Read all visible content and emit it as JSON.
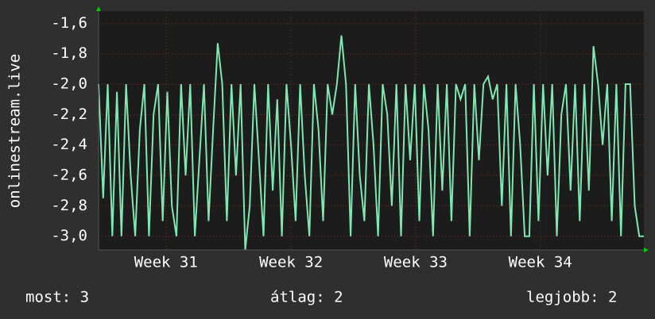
{
  "chart_data": {
    "type": "line",
    "y_label": "onlinestream.live",
    "series": [
      {
        "name": "onlinestream.live",
        "color": "#7ee8b0",
        "values": [
          -2.0,
          -2.75,
          -2.0,
          -3.0,
          -2.05,
          -3.0,
          -2.0,
          -2.6,
          -3.0,
          -2.3,
          -2.0,
          -3.0,
          -2.2,
          -2.0,
          -2.9,
          -2.05,
          -2.8,
          -3.0,
          -2.0,
          -2.6,
          -2.0,
          -3.0,
          -2.5,
          -2.0,
          -2.9,
          -2.3,
          -1.73,
          -2.0,
          -2.9,
          -2.0,
          -2.6,
          -2.0,
          -3.09,
          -2.8,
          -2.0,
          -2.5,
          -3.0,
          -2.0,
          -2.7,
          -2.1,
          -3.0,
          -2.0,
          -2.4,
          -2.9,
          -2.0,
          -2.6,
          -3.0,
          -2.0,
          -2.3,
          -2.9,
          -2.0,
          -2.2,
          -2.0,
          -1.68,
          -2.0,
          -3.0,
          -2.0,
          -2.6,
          -2.9,
          -2.0,
          -2.4,
          -3.0,
          -2.0,
          -2.2,
          -2.8,
          -2.0,
          -3.0,
          -2.0,
          -2.5,
          -2.0,
          -2.9,
          -2.0,
          -2.3,
          -3.0,
          -2.0,
          -2.7,
          -2.0,
          -2.9,
          -2.0,
          -2.1,
          -2.0,
          -3.0,
          -2.0,
          -2.5,
          -2.0,
          -1.95,
          -2.1,
          -2.0,
          -2.8,
          -2.0,
          -3.0,
          -2.0,
          -2.4,
          -3.0,
          -3.0,
          -2.0,
          -2.9,
          -2.0,
          -2.6,
          -2.0,
          -3.0,
          -2.2,
          -2.0,
          -2.7,
          -2.0,
          -2.9,
          -2.0,
          -2.7,
          -1.75,
          -2.0,
          -2.4,
          -2.0,
          -2.9,
          -2.0,
          -3.0,
          -2.0,
          -2.0,
          -2.8,
          -3.0,
          -3.0
        ]
      }
    ],
    "xlim": [
      0,
      119
    ],
    "xticks": [
      {
        "value": 14.7,
        "label": "Week 31"
      },
      {
        "value": 42,
        "label": "Week 32"
      },
      {
        "value": 69.2,
        "label": "Week 33"
      },
      {
        "value": 96.4,
        "label": "Week 34"
      }
    ],
    "ylim": [
      -3.09,
      -1.52
    ],
    "yticks": [
      {
        "value": -3.0,
        "label": "-3,0"
      },
      {
        "value": -2.8,
        "label": "-2,8"
      },
      {
        "value": -2.6,
        "label": "-2,6"
      },
      {
        "value": -2.4,
        "label": "-2,4"
      },
      {
        "value": -2.2,
        "label": "-2,2"
      },
      {
        "value": -2.0,
        "label": "-2,0"
      },
      {
        "value": -1.8,
        "label": "-1,8"
      },
      {
        "value": -1.6,
        "label": "-1,6"
      }
    ],
    "grid": true,
    "legend": [
      "most: 3",
      "átlag: 2",
      "legjobb: 2"
    ]
  }
}
